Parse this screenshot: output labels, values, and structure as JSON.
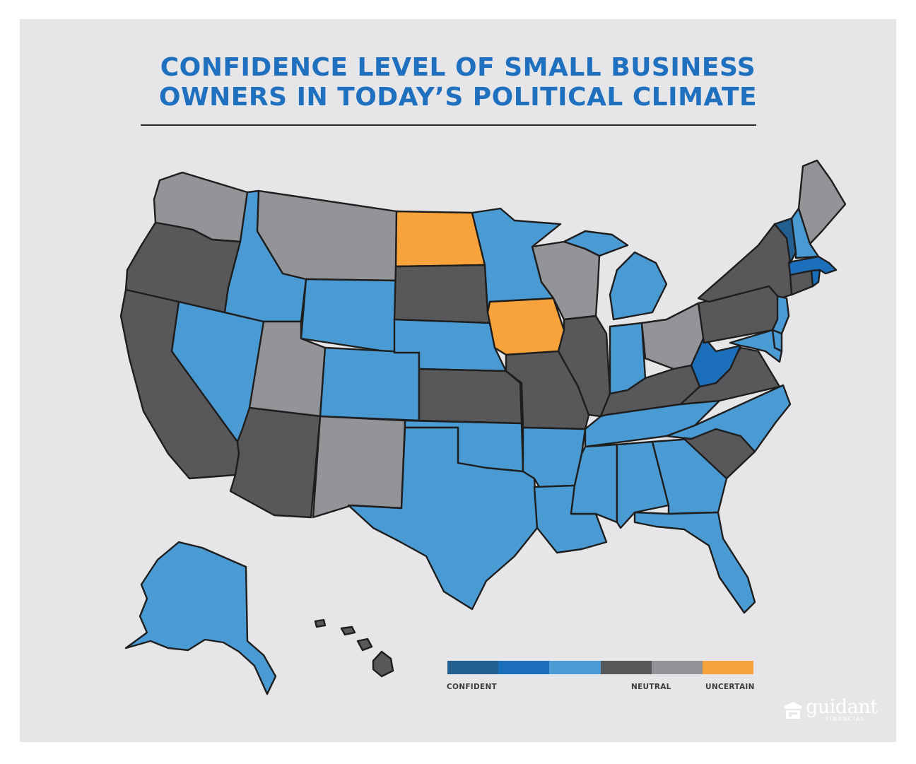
{
  "title_line1": "CONFIDENCE LEVEL OF SMALL BUSINESS",
  "title_line2": "OWNERS IN TODAY’S POLITICAL CLIMATE",
  "legend": {
    "colors": [
      "#245f91",
      "#1c6fba",
      "#4a9bd4",
      "#58585b",
      "#939497",
      "#f7a23b"
    ],
    "label_left": "CONFIDENT",
    "label_mid": "NEUTRAL",
    "label_right": "UNCERTAIN"
  },
  "state_colors": {
    "WA": "#939497",
    "OR": "#58585b",
    "CA": "#58585b",
    "NV": "#4a9bd4",
    "ID": "#4a9bd4",
    "MT": "#939497",
    "WY": "#4a9bd4",
    "UT": "#939497",
    "AZ": "#58585b",
    "CO": "#4a9bd4",
    "NM": "#939497",
    "ND": "#f7a23b",
    "SD": "#58585b",
    "NE": "#4a9bd4",
    "KS": "#58585b",
    "OK": "#4a9bd4",
    "TX": "#4a9bd4",
    "MN": "#4a9bd4",
    "IA": "#f7a23b",
    "MO": "#58585b",
    "AR": "#4a9bd4",
    "LA": "#4a9bd4",
    "WI": "#939497",
    "IL": "#58585b",
    "MI": "#4a9bd4",
    "IN": "#4a9bd4",
    "OH": "#939497",
    "KY": "#58585b",
    "TN": "#4a9bd4",
    "MS": "#4a9bd4",
    "AL": "#4a9bd4",
    "GA": "#4a9bd4",
    "FL": "#4a9bd4",
    "SC": "#58585b",
    "NC": "#4a9bd4",
    "VA": "#58585b",
    "WV": "#1c6fba",
    "PA": "#58585b",
    "NY": "#58585b",
    "NJ": "#4a9bd4",
    "DE": "#4a9bd4",
    "MD": "#4a9bd4",
    "CT": "#58585b",
    "RI": "#1c6fba",
    "MA": "#1c6fba",
    "VT": "#245f91",
    "NH": "#4a9bd4",
    "ME": "#939497",
    "AK": "#4a9bd4",
    "HI": "#58585b"
  },
  "logo_text": "guidant",
  "logo_sub": "FINANCIAL"
}
